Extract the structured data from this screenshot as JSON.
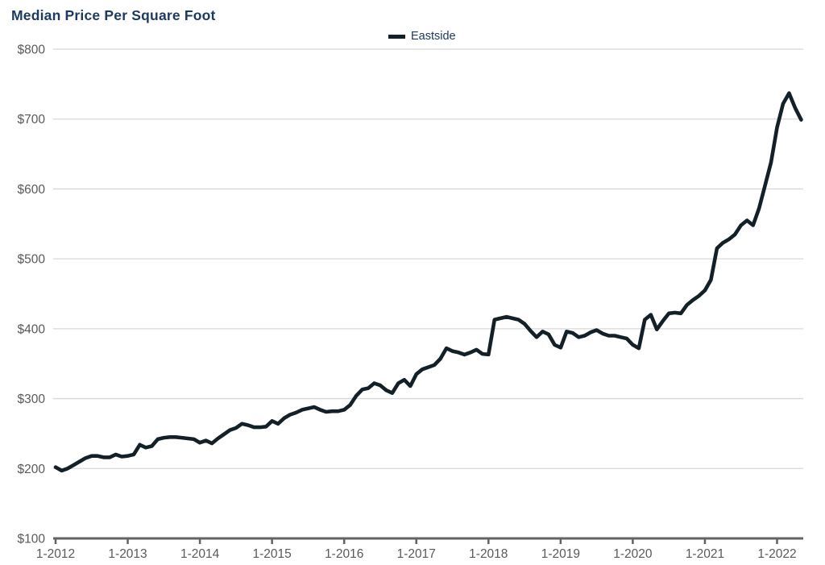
{
  "chart": {
    "title": "Median Price Per Square Foot",
    "legend": {
      "label": "Eastside",
      "position": "top-center"
    }
  },
  "colors": {
    "title_text": "#1d3a60",
    "series_line": "#142028",
    "gridline": "#d8d8d8",
    "axis_line": "#636363",
    "axis_text": "#595959",
    "background": "#ffffff"
  },
  "chart_data": {
    "type": "line",
    "title": "Median Price Per Square Foot",
    "xlabel": "",
    "ylabel": "",
    "x_unit": "month",
    "x_start_label": "1-2012",
    "x_end_label": "5-2022",
    "x_tick_labels": [
      "1-2012",
      "1-2013",
      "1-2014",
      "1-2015",
      "1-2016",
      "1-2017",
      "1-2018",
      "1-2019",
      "1-2020",
      "1-2021",
      "1-2022"
    ],
    "x_ticks_every_n_months": 12,
    "y_tick_values": [
      100,
      200,
      300,
      400,
      500,
      600,
      700,
      800
    ],
    "y_tick_labels": [
      "$100",
      "$200",
      "$300",
      "$400",
      "$500",
      "$600",
      "$700",
      "$800"
    ],
    "ylim": [
      100,
      800
    ],
    "grid": "horizontal",
    "legend_position": "top-center",
    "series": [
      {
        "name": "Eastside",
        "color": "#142028",
        "values": [
          202,
          197,
          200,
          205,
          210,
          215,
          218,
          218,
          216,
          216,
          220,
          217,
          218,
          220,
          234,
          230,
          232,
          242,
          244,
          245,
          245,
          244,
          243,
          242,
          237,
          240,
          236,
          243,
          249,
          255,
          258,
          264,
          262,
          259,
          259,
          260,
          268,
          264,
          272,
          277,
          280,
          284,
          286,
          288,
          284,
          281,
          282,
          282,
          284,
          291,
          304,
          313,
          315,
          322,
          319,
          312,
          308,
          322,
          327,
          318,
          335,
          342,
          345,
          348,
          357,
          372,
          368,
          366,
          363,
          366,
          370,
          364,
          363,
          413,
          415,
          417,
          415,
          413,
          407,
          397,
          388,
          396,
          392,
          377,
          373,
          396,
          394,
          388,
          390,
          395,
          398,
          393,
          390,
          390,
          388,
          386,
          377,
          372,
          413,
          420,
          399,
          411,
          422,
          423,
          422,
          434,
          441,
          447,
          455,
          470,
          515,
          523,
          528,
          535,
          548,
          555,
          548,
          572,
          605,
          638,
          688,
          722,
          737,
          716,
          699
        ]
      }
    ]
  }
}
